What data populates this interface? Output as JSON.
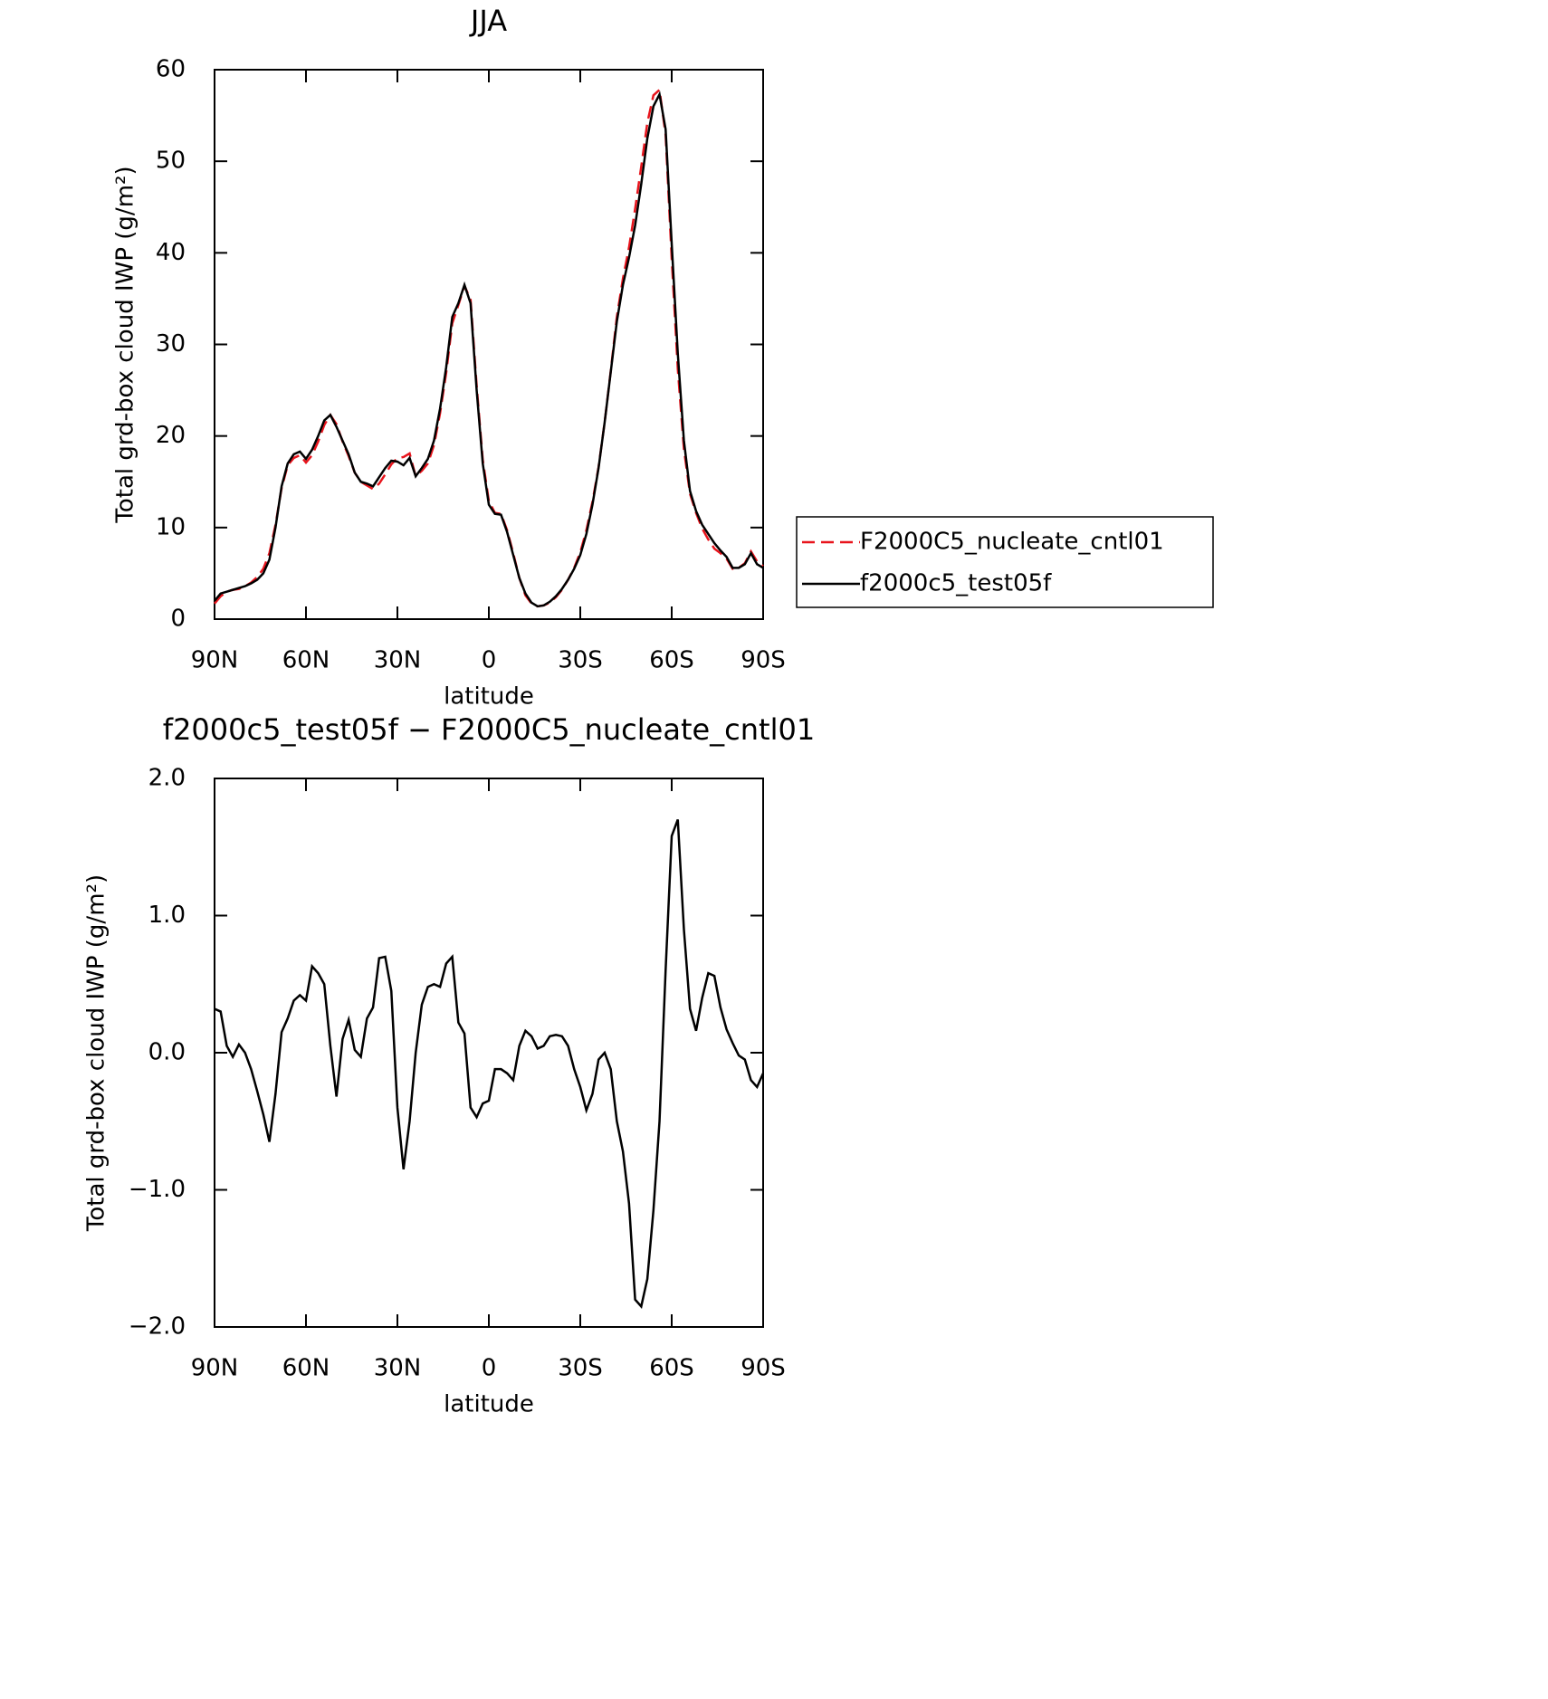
{
  "chart_data": [
    {
      "type": "line",
      "title": "JJA",
      "x_label": "latitude",
      "y_label": "Total grd-box cloud IWP (g/m²)",
      "x": [
        90,
        88,
        86,
        84,
        82,
        80,
        78,
        76,
        74,
        72,
        70,
        68,
        66,
        64,
        62,
        60,
        58,
        56,
        54,
        52,
        50,
        48,
        46,
        44,
        42,
        40,
        38,
        36,
        34,
        32,
        30,
        28,
        26,
        24,
        22,
        20,
        18,
        16,
        14,
        12,
        10,
        8,
        6,
        4,
        2,
        0,
        -2,
        -4,
        -6,
        -8,
        -10,
        -12,
        -14,
        -16,
        -18,
        -20,
        -22,
        -24,
        -26,
        -28,
        -30,
        -32,
        -34,
        -36,
        -38,
        -40,
        -42,
        -44,
        -46,
        -48,
        -50,
        -52,
        -54,
        -56,
        -58,
        -60,
        -62,
        -64,
        -66,
        -68,
        -70,
        -72,
        -74,
        -76,
        -78,
        -80,
        -82,
        -84,
        -86,
        -88,
        -90
      ],
      "xlim": [
        90,
        -90
      ],
      "xticks": [
        {
          "value": 90,
          "label": "90N"
        },
        {
          "value": 60,
          "label": "60N"
        },
        {
          "value": 30,
          "label": "30N"
        },
        0,
        {
          "value": -30,
          "label": "30S"
        },
        {
          "value": -60,
          "label": "60S"
        },
        {
          "value": -90,
          "label": "90S"
        }
      ],
      "ylim": [
        0,
        60
      ],
      "yticks": [
        0,
        10,
        20,
        30,
        40,
        50,
        60
      ],
      "legend": "outside-right",
      "series": [
        {
          "name": "F2000C5_nucleate_cntl01",
          "color": "#e8141c",
          "dash": "dashed",
          "values": [
            1.7,
            2.5,
            3.0,
            3.2,
            3.3,
            3.6,
            4.0,
            4.6,
            5.5,
            7.2,
            10.3,
            14.3,
            16.8,
            17.6,
            17.9,
            17.1,
            17.9,
            19.4,
            21.2,
            22.3,
            21.3,
            19.4,
            17.8,
            16.0,
            15.0,
            14.6,
            14.2,
            14.8,
            15.8,
            16.9,
            17.6,
            17.7,
            18.1,
            15.6,
            16.2,
            17.0,
            19.0,
            22.5,
            26.9,
            32.3,
            34.3,
            36.4,
            34.9,
            25.5,
            17.4,
            12.9,
            11.6,
            11.5,
            9.7,
            7.2,
            4.5,
            2.6,
            1.7,
            1.4,
            1.5,
            1.8,
            2.4,
            3.2,
            4.3,
            5.6,
            7.3,
            9.7,
            12.8,
            16.6,
            21.5,
            27.1,
            33.0,
            37.2,
            40.6,
            44.8,
            49.4,
            54.2,
            57.2,
            57.8,
            52.9,
            39.4,
            27.3,
            18.6,
            13.7,
            11.6,
            9.9,
            8.7,
            7.7,
            7.2,
            6.6,
            5.5,
            5.6,
            6.1,
            7.4,
            6.3,
            5.8
          ]
        },
        {
          "name": "f2000c5_test05f",
          "color": "#000000",
          "dash": "solid",
          "values": [
            2.0,
            2.8,
            3.0,
            3.2,
            3.4,
            3.6,
            3.9,
            4.3,
            5.0,
            6.5,
            10.0,
            14.5,
            17.0,
            18.0,
            18.3,
            17.5,
            18.5,
            20.0,
            21.7,
            22.3,
            21.0,
            19.5,
            18.0,
            16.0,
            15.0,
            14.8,
            14.5,
            15.5,
            16.5,
            17.3,
            17.2,
            16.8,
            17.6,
            15.6,
            16.5,
            17.5,
            19.5,
            23.0,
            27.5,
            33.0,
            34.5,
            36.5,
            34.5,
            25.0,
            17.0,
            12.5,
            11.5,
            11.4,
            9.5,
            7.0,
            4.5,
            2.8,
            1.8,
            1.4,
            1.5,
            1.9,
            2.5,
            3.3,
            4.3,
            5.5,
            7.0,
            9.3,
            12.5,
            16.5,
            21.5,
            27.0,
            32.5,
            36.5,
            39.5,
            43.0,
            47.5,
            52.5,
            56.0,
            57.3,
            53.5,
            41.0,
            29.0,
            19.5,
            14.0,
            11.8,
            10.3,
            9.3,
            8.3,
            7.5,
            6.8,
            5.6,
            5.6,
            6.0,
            7.2,
            6.0,
            5.6
          ]
        }
      ]
    },
    {
      "type": "line",
      "title": "f2000c5_test05f − F2000C5_nucleate_cntl01",
      "x_label": "latitude",
      "y_label": "Total grd-box cloud IWP (g/m²)",
      "x": [
        90,
        88,
        86,
        84,
        82,
        80,
        78,
        76,
        74,
        72,
        70,
        68,
        66,
        64,
        62,
        60,
        58,
        56,
        54,
        52,
        50,
        48,
        46,
        44,
        42,
        40,
        38,
        36,
        34,
        32,
        30,
        28,
        26,
        24,
        22,
        20,
        18,
        16,
        14,
        12,
        10,
        8,
        6,
        4,
        2,
        0,
        -2,
        -4,
        -6,
        -8,
        -10,
        -12,
        -14,
        -16,
        -18,
        -20,
        -22,
        -24,
        -26,
        -28,
        -30,
        -32,
        -34,
        -36,
        -38,
        -40,
        -42,
        -44,
        -46,
        -48,
        -50,
        -52,
        -54,
        -56,
        -58,
        -60,
        -62,
        -64,
        -66,
        -68,
        -70,
        -72,
        -74,
        -76,
        -78,
        -80,
        -82,
        -84,
        -86,
        -88,
        -90
      ],
      "xlim": [
        90,
        -90
      ],
      "xticks": [
        {
          "value": 90,
          "label": "90N"
        },
        {
          "value": 60,
          "label": "60N"
        },
        {
          "value": 30,
          "label": "30N"
        },
        0,
        {
          "value": -30,
          "label": "30S"
        },
        {
          "value": -60,
          "label": "60S"
        },
        {
          "value": -90,
          "label": "90S"
        }
      ],
      "ylim": [
        -2,
        2
      ],
      "yticks": [
        {
          "value": -2,
          "label": "−2.0"
        },
        {
          "value": -1,
          "label": "−1.0"
        },
        {
          "value": 0,
          "label": "0.0"
        },
        {
          "value": 1,
          "label": "1.0"
        },
        {
          "value": 2,
          "label": "2.0"
        }
      ],
      "series": [
        {
          "color": "#000000",
          "dash": "solid",
          "values": [
            0.32,
            0.3,
            0.05,
            -0.03,
            0.06,
            0.0,
            -0.12,
            -0.28,
            -0.45,
            -0.65,
            -0.3,
            0.15,
            0.25,
            0.38,
            0.42,
            0.38,
            0.63,
            0.58,
            0.5,
            0.05,
            -0.32,
            0.1,
            0.24,
            0.02,
            -0.03,
            0.25,
            0.33,
            0.69,
            0.7,
            0.45,
            -0.4,
            -0.85,
            -0.5,
            0.0,
            0.35,
            0.48,
            0.5,
            0.48,
            0.65,
            0.7,
            0.22,
            0.14,
            -0.4,
            -0.47,
            -0.37,
            -0.35,
            -0.12,
            -0.12,
            -0.15,
            -0.2,
            0.05,
            0.16,
            0.12,
            0.03,
            0.05,
            0.12,
            0.13,
            0.12,
            0.05,
            -0.12,
            -0.25,
            -0.42,
            -0.3,
            -0.05,
            0.0,
            -0.12,
            -0.5,
            -0.72,
            -1.1,
            -1.8,
            -1.85,
            -1.65,
            -1.15,
            -0.5,
            0.6,
            1.58,
            1.7,
            0.9,
            0.32,
            0.16,
            0.4,
            0.58,
            0.56,
            0.33,
            0.17,
            0.07,
            -0.02,
            -0.05,
            -0.2,
            -0.25,
            -0.15
          ]
        }
      ]
    }
  ]
}
